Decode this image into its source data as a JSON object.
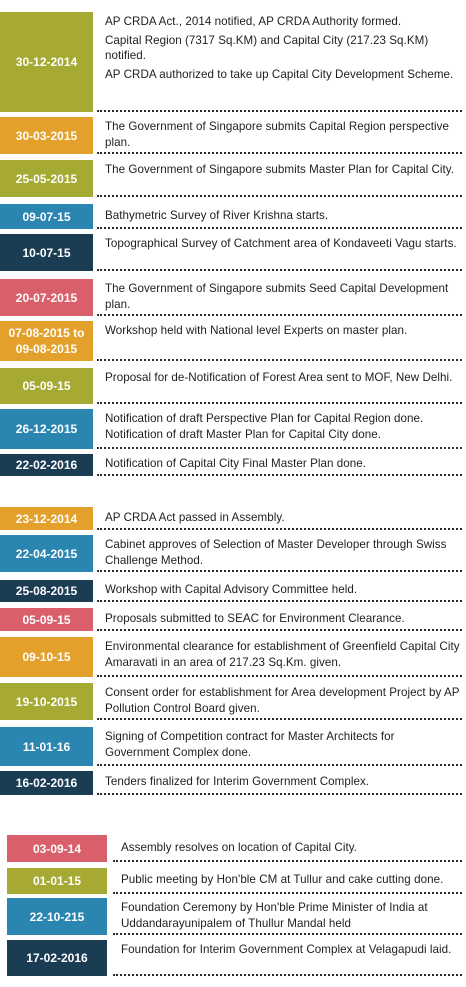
{
  "colors": {
    "green": "#a6a932",
    "orange": "#e3a02a",
    "teal": "#2a86b1",
    "navy": "#1b3d54",
    "pink": "#d9606b",
    "text": "#1e1e1e"
  },
  "section1": [
    {
      "date": "30-12-2014",
      "color": "green",
      "lines": [
        "AP CRDA Act., 2014 notified, AP CRDA Authority formed.",
        "Capital Region (7317 Sq.KM) and Capital City (217.23 Sq.KM) notified.",
        "AP CRDA authorized to take up Capital City Development Scheme."
      ]
    },
    {
      "date": "30-03-2015",
      "color": "orange",
      "lines": [
        "The Government of Singapore submits Capital Region perspective plan."
      ]
    },
    {
      "date": "25-05-2015",
      "color": "green",
      "lines": [
        "The Government of Singapore submits Master Plan for Capital City."
      ]
    },
    {
      "date": "09-07-15",
      "color": "teal",
      "lines": [
        "Bathymetric Survey of River Krishna starts."
      ]
    },
    {
      "date": "10-07-15",
      "color": "navy",
      "lines": [
        "Topographical Survey of Catchment area of Kondaveeti Vagu starts."
      ]
    },
    {
      "date": "20-07-2015",
      "color": "pink",
      "lines": [
        "The Government of Singapore submits Seed Capital Development plan."
      ]
    },
    {
      "date": "07-08-2015 to 09-08-2015",
      "color": "orange",
      "lines": [
        "Workshop held with National level Experts on master plan."
      ]
    },
    {
      "date": "05-09-15",
      "color": "green",
      "lines": [
        "Proposal for de-Notification of Forest Area sent to MOF, New Delhi."
      ]
    },
    {
      "date": "26-12-2015",
      "color": "teal",
      "lines": [
        "Notification of draft Perspective Plan for Capital Region done.",
        "Notification of draft Master Plan for Capital City done."
      ]
    },
    {
      "date": "22-02-2016",
      "color": "navy",
      "lines": [
        "Notification of Capital City Final Master Plan done."
      ]
    }
  ],
  "section2": [
    {
      "date": "23-12-2014",
      "color": "orange",
      "lines": [
        "AP CRDA Act passed in Assembly."
      ]
    },
    {
      "date": "22-04-2015",
      "color": "teal",
      "lines": [
        "Cabinet approves of Selection of Master Developer through Swiss Challenge Method."
      ]
    },
    {
      "date": "25-08-2015",
      "color": "navy",
      "lines": [
        "Workshop with Capital Advisory Committee held."
      ]
    },
    {
      "date": "05-09-15",
      "color": "pink",
      "lines": [
        "Proposals submitted to SEAC for Environment Clearance."
      ]
    },
    {
      "date": "09-10-15",
      "color": "orange",
      "lines": [
        "Environmental clearance for establishment of Greenfield Capital City Amaravati in an area of 217.23 Sq.Km. given."
      ]
    },
    {
      "date": "19-10-2015",
      "color": "green",
      "lines": [
        "Consent order for establishment for Area development Project by AP Pollution Control Board given."
      ]
    },
    {
      "date": "11-01-16",
      "color": "teal",
      "lines": [
        "Signing of Competition contract for Master Architects for Government Complex done."
      ]
    },
    {
      "date": "16-02-2016",
      "color": "navy",
      "lines": [
        "Tenders finalized for Interim Government Complex."
      ]
    }
  ],
  "section3": [
    {
      "date": "03-09-14",
      "color": "pink",
      "lines": [
        "Assembly resolves on location of Capital City."
      ]
    },
    {
      "date": "01-01-15",
      "color": "green",
      "lines": [
        "Public meeting by Hon'ble CM at Tullur and cake cutting done."
      ]
    },
    {
      "date": "22-10-215",
      "color": "teal",
      "lines": [
        "Foundation Ceremony by Hon'ble Prime Minister of India at Uddandarayunipalem of Thullur Mandal held"
      ]
    },
    {
      "date": "17-02-2016",
      "color": "navy",
      "lines": [
        "Foundation for Interim Government Complex at Velagapudi laid."
      ]
    }
  ]
}
